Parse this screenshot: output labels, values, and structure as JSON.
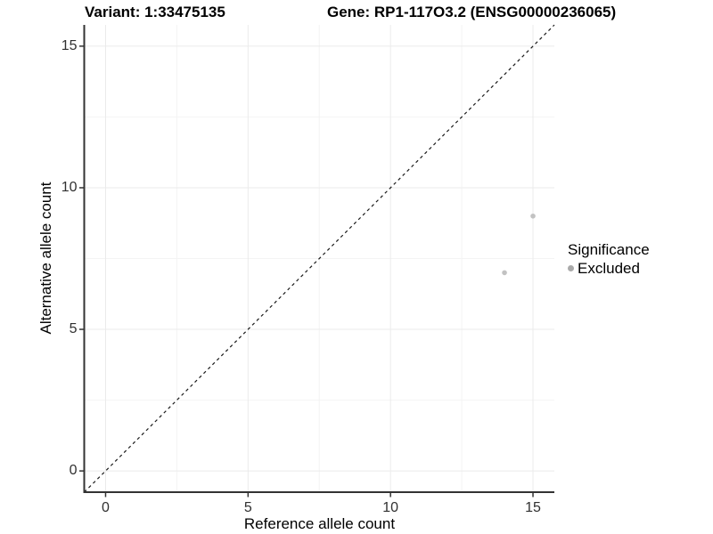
{
  "titles": {
    "variant": "Variant: 1:33475135",
    "gene": "Gene: RP1-117O3.2 (ENSG00000236065)"
  },
  "chart_data": {
    "type": "scatter",
    "title": "Variant: 1:33475135",
    "subtitle": "Gene: RP1-117O3.2 (ENSG00000236065)",
    "xlabel": "Reference allele count",
    "ylabel": "Alternative allele count",
    "xlim": [
      -0.75,
      15.75
    ],
    "ylim": [
      -0.75,
      15.75
    ],
    "x_ticks": [
      0,
      5,
      10,
      15
    ],
    "y_ticks": [
      0,
      5,
      10,
      15
    ],
    "x_minor_ticks": [
      2.5,
      7.5,
      12.5
    ],
    "y_minor_ticks": [
      2.5,
      7.5,
      12.5
    ],
    "grid": true,
    "reference_line": {
      "type": "identity y=x",
      "style": "dashed",
      "color": "#1a1a1a"
    },
    "series": [
      {
        "name": "Excluded",
        "point_color": "#c2c2c2",
        "points": [
          {
            "x": 14,
            "y": 7
          },
          {
            "x": 15,
            "y": 9
          }
        ]
      }
    ],
    "legend": {
      "position": "right",
      "title": "Significance",
      "entries": [
        {
          "label": "Excluded",
          "color": "#aaaaaa"
        }
      ]
    }
  },
  "style": {
    "axis_line_color": "#333333",
    "tick_color": "#333333",
    "grid_major_color": "#ebebeb",
    "grid_minor_color": "#f4f4f4",
    "background": "#ffffff"
  }
}
